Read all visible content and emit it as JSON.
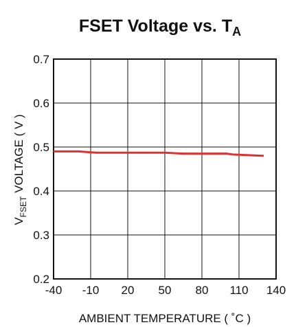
{
  "chart_data": {
    "type": "line",
    "title": {
      "main": "FSET Voltage  vs. T",
      "sub": "A"
    },
    "xlabel": "AMBIENT TEMPERATURE ( ˚C )",
    "ylabel": {
      "main1": "V",
      "sub": "FSET",
      "main2": "  VOLTAGE ( V )"
    },
    "xlim": [
      -40,
      140
    ],
    "ylim": [
      0.2,
      0.7
    ],
    "xticks": [
      "-40",
      "-10",
      "20",
      "50",
      "80",
      "110",
      "140"
    ],
    "yticks": [
      "0.2",
      "0.3",
      "0.4",
      "0.5",
      "0.6",
      "0.7"
    ],
    "grid": true,
    "line_color": "#e03030",
    "series": [
      {
        "x": [
          -40,
          -20,
          -10,
          -5,
          20,
          50,
          65,
          100,
          105,
          130
        ],
        "y": [
          0.49,
          0.49,
          0.488,
          0.487,
          0.487,
          0.487,
          0.485,
          0.485,
          0.483,
          0.48
        ]
      }
    ]
  }
}
